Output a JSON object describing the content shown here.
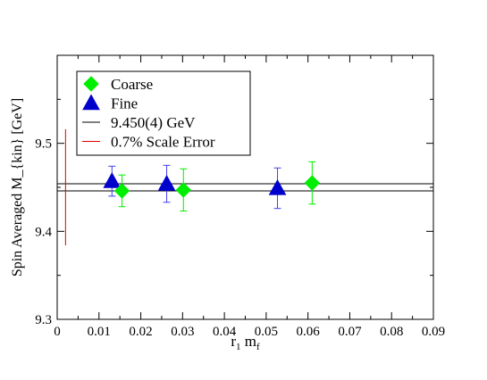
{
  "chart_data": {
    "type": "scatter",
    "title": "",
    "xlabel": "r",
    "xlabel_sub1": "1",
    "xlabel_mid": " m",
    "xlabel_sub2": "f",
    "ylabel": "Spin Averaged M_{kin} [GeV]",
    "xlim": [
      0,
      0.09
    ],
    "ylim": [
      9.3,
      9.6
    ],
    "x_ticks": [
      0,
      0.01,
      0.02,
      0.03,
      0.04,
      0.05,
      0.06,
      0.07,
      0.08,
      0.09
    ],
    "x_tick_labels": [
      "0",
      "0.01",
      "0.02",
      "0.03",
      "0.04",
      "0.05",
      "0.06",
      "0.07",
      "0.08",
      "0.09"
    ],
    "y_ticks": [
      9.3,
      9.4,
      9.5
    ],
    "y_tick_labels": [
      "9.3",
      "9.4",
      "9.5"
    ],
    "grid": false,
    "legend_position": "top-left",
    "colors": {
      "coarse": "#00ee00",
      "fine": "#0000cc",
      "fine_errorbar": "#4040ee",
      "band": "#000000",
      "scale_error": "#dd0000"
    },
    "series": [
      {
        "name": "Coarse",
        "marker": "diamond",
        "points": [
          {
            "x": 0.0155,
            "y": 9.446,
            "err": 0.018
          },
          {
            "x": 0.0302,
            "y": 9.447,
            "err": 0.024
          },
          {
            "x": 0.061,
            "y": 9.455,
            "err": 0.024
          }
        ]
      },
      {
        "name": "Fine",
        "marker": "triangle",
        "points": [
          {
            "x": 0.0131,
            "y": 9.457,
            "err": 0.017
          },
          {
            "x": 0.0262,
            "y": 9.454,
            "err": 0.021
          },
          {
            "x": 0.0527,
            "y": 9.449,
            "err": 0.023
          }
        ]
      }
    ],
    "bands": [
      {
        "name": "9.450(4) GeV",
        "center": 9.45,
        "err": 0.004
      }
    ],
    "scale_error_bar": {
      "name": "0.7% Scale Error",
      "x": 0.002,
      "y_center": 9.45,
      "half_range": 0.066
    },
    "legend": [
      {
        "label": "Coarse",
        "kind": "coarse"
      },
      {
        "label": "Fine",
        "kind": "fine"
      },
      {
        "label": "9.450(4) GeV",
        "kind": "band"
      },
      {
        "label": "0.7% Scale Error",
        "kind": "scale_error"
      }
    ]
  }
}
